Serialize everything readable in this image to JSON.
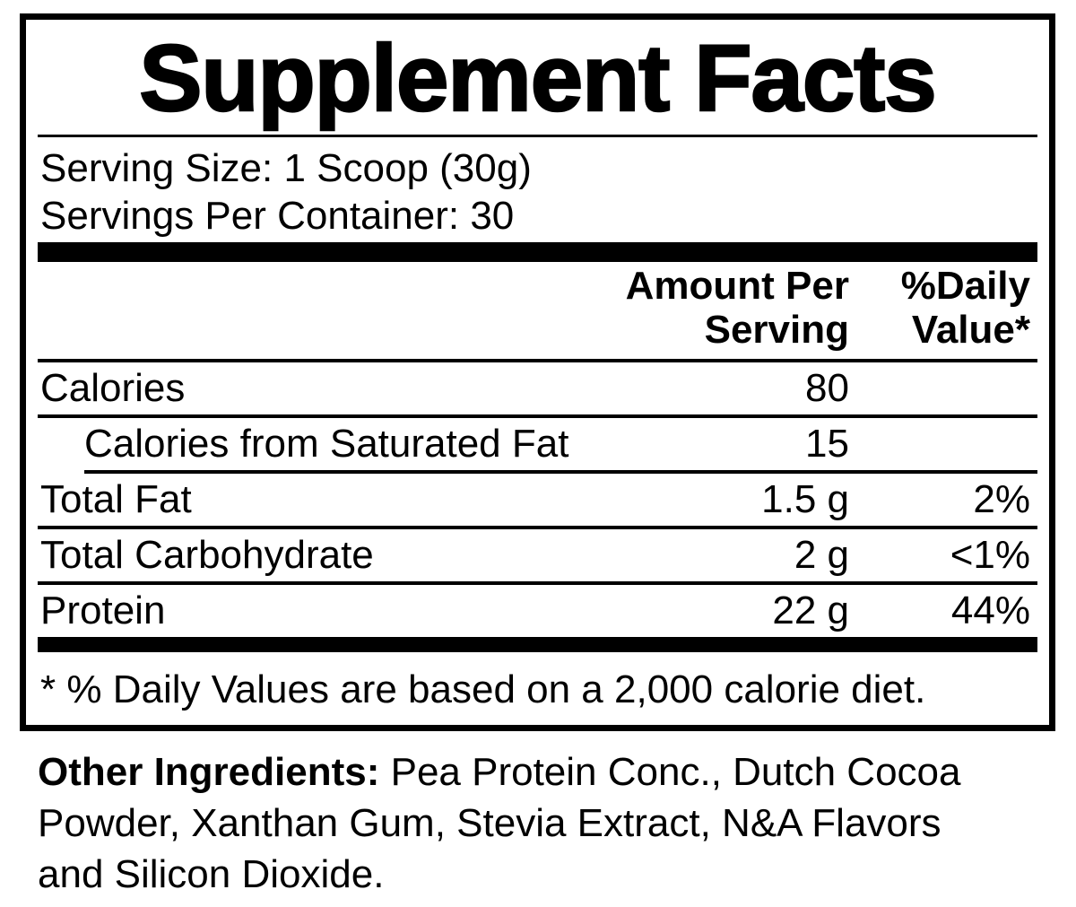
{
  "label": {
    "title": "Supplement Facts",
    "serving_size": "Serving Size: 1 Scoop (30g)",
    "servings_per_container": "Servings Per Container: 30",
    "header": {
      "amount": "Amount Per Serving",
      "daily_value": "%Daily Value*"
    },
    "rows": [
      {
        "name": "Calories",
        "amount": "80",
        "dv": ""
      },
      {
        "name": "Calories from Saturated Fat",
        "amount": "15",
        "dv": ""
      },
      {
        "name": "Total Fat",
        "amount": "1.5 g",
        "dv": "2%"
      },
      {
        "name": "Total Carbohydrate",
        "amount": "2 g",
        "dv": "<1%"
      },
      {
        "name": "Protein",
        "amount": "22 g",
        "dv": "44%"
      }
    ],
    "footnote": "* % Daily Values are based on a 2,000 calorie diet.",
    "other_ingredients_label": "Other Ingredients:",
    "other_ingredients_text": " Pea Protein Conc., Dutch Cocoa Powder, Xanthan Gum, Stevia Extract, N&A Flavors and Silicon Dioxide.",
    "colors": {
      "ink": "#000000",
      "background": "#ffffff"
    }
  }
}
